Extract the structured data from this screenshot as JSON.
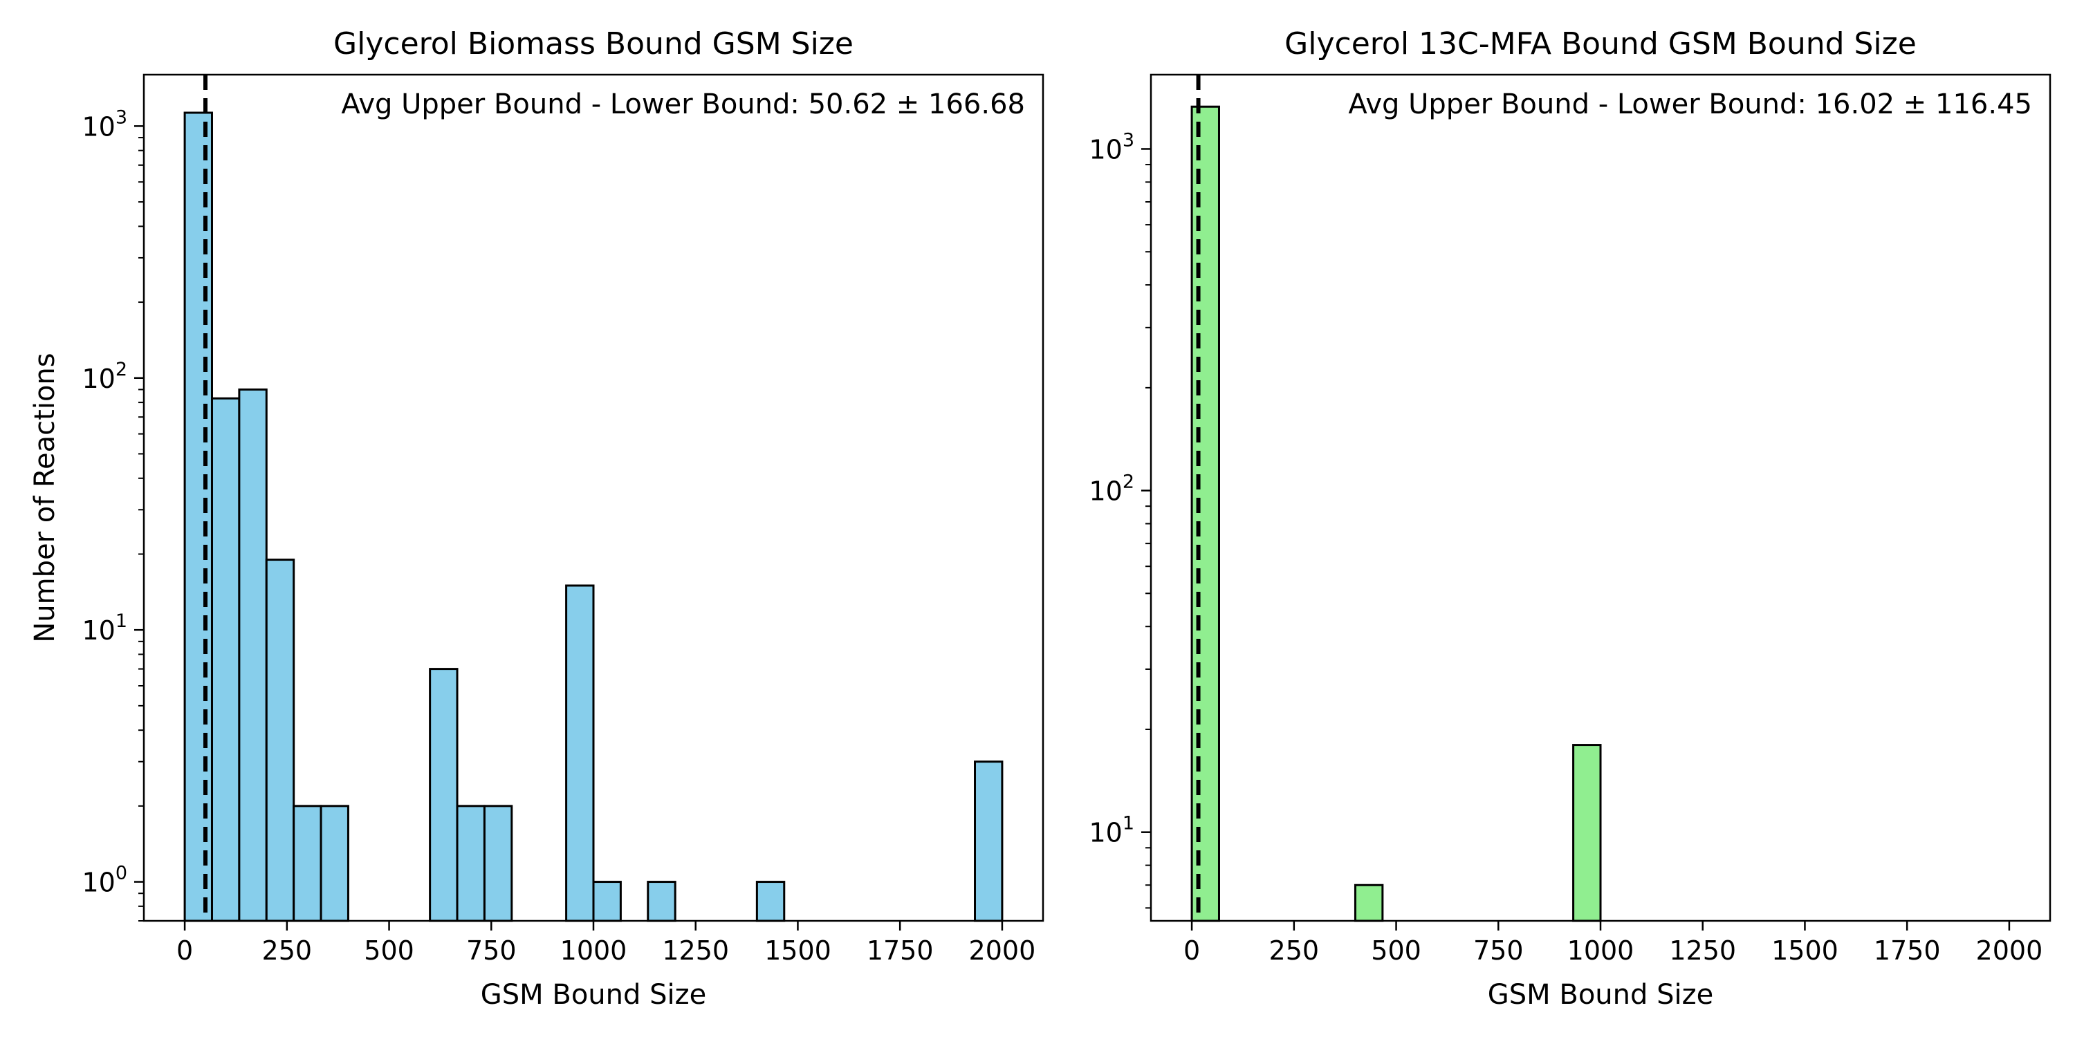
{
  "chart_data": [
    {
      "type": "bar",
      "title": "Glycerol Biomass Bound GSM Size",
      "xlabel": "GSM Bound Size",
      "ylabel": "Number of Reactions",
      "yscale": "log",
      "xlim": [
        -100,
        2100
      ],
      "ylim": [
        0.7,
        1600
      ],
      "x_ticks": [
        0,
        250,
        500,
        750,
        1000,
        1250,
        1500,
        1750,
        2000
      ],
      "y_ticks": [
        {
          "value": 1,
          "base": "10",
          "exp": "0"
        },
        {
          "value": 10,
          "base": "10",
          "exp": "1"
        },
        {
          "value": 100,
          "base": "10",
          "exp": "2"
        },
        {
          "value": 1000,
          "base": "10",
          "exp": "3"
        }
      ],
      "bin_width": 66.67,
      "bin_edges": [
        0.0,
        66.67,
        133.33,
        200.0,
        266.67,
        333.33,
        400.0,
        466.67,
        533.33,
        600.0,
        666.67,
        733.33,
        800.0,
        866.67,
        933.33,
        1000.0,
        1066.67,
        1133.33,
        1200.0,
        1266.67,
        1333.33,
        1400.0,
        1466.67,
        1533.33,
        1600.0,
        1666.67,
        1733.33,
        1800.0,
        1866.67,
        1933.33,
        2000.0
      ],
      "counts": [
        1130,
        83,
        90,
        19,
        2,
        2,
        0,
        0,
        0,
        7,
        2,
        2,
        0,
        0,
        15,
        1,
        0,
        1,
        0,
        0,
        0,
        1,
        0,
        0,
        0,
        0,
        0,
        0,
        0,
        3
      ],
      "mean_line": 50.62,
      "annotation": "Avg Upper Bound - Lower Bound: 50.62 ± 166.68",
      "bar_color": "#87ceeb",
      "edge_color": "#000000",
      "grid": false
    },
    {
      "type": "bar",
      "title": "Glycerol 13C-MFA Bound GSM Bound Size",
      "xlabel": "GSM Bound Size",
      "ylabel": "",
      "yscale": "log",
      "xlim": [
        -100,
        2100
      ],
      "ylim": [
        5.5,
        1650
      ],
      "x_ticks": [
        0,
        250,
        500,
        750,
        1000,
        1250,
        1500,
        1750,
        2000
      ],
      "y_ticks": [
        {
          "value": 10,
          "base": "10",
          "exp": "1"
        },
        {
          "value": 100,
          "base": "10",
          "exp": "2"
        },
        {
          "value": 1000,
          "base": "10",
          "exp": "3"
        }
      ],
      "bin_width": 66.67,
      "bin_edges": [
        0.0,
        66.67,
        133.33,
        200.0,
        266.67,
        333.33,
        400.0,
        466.67,
        533.33,
        600.0,
        666.67,
        733.33,
        800.0,
        866.67,
        933.33,
        1000.0,
        1066.67,
        1133.33,
        1200.0,
        1266.67,
        1333.33,
        1400.0,
        1466.67,
        1533.33,
        1600.0,
        1666.67,
        1733.33,
        1800.0,
        1866.67,
        1933.33,
        2000.0
      ],
      "counts": [
        1330,
        0,
        0,
        0,
        0,
        0,
        7,
        0,
        0,
        0,
        0,
        0,
        0,
        0,
        18,
        0,
        0,
        0,
        0,
        0,
        0,
        0,
        0,
        0,
        0,
        0,
        0,
        0,
        0,
        0
      ],
      "mean_line": 16.02,
      "annotation": "Avg Upper Bound - Lower Bound: 16.02 ± 116.45",
      "bar_color": "#90ee90",
      "edge_color": "#000000",
      "grid": false
    }
  ]
}
